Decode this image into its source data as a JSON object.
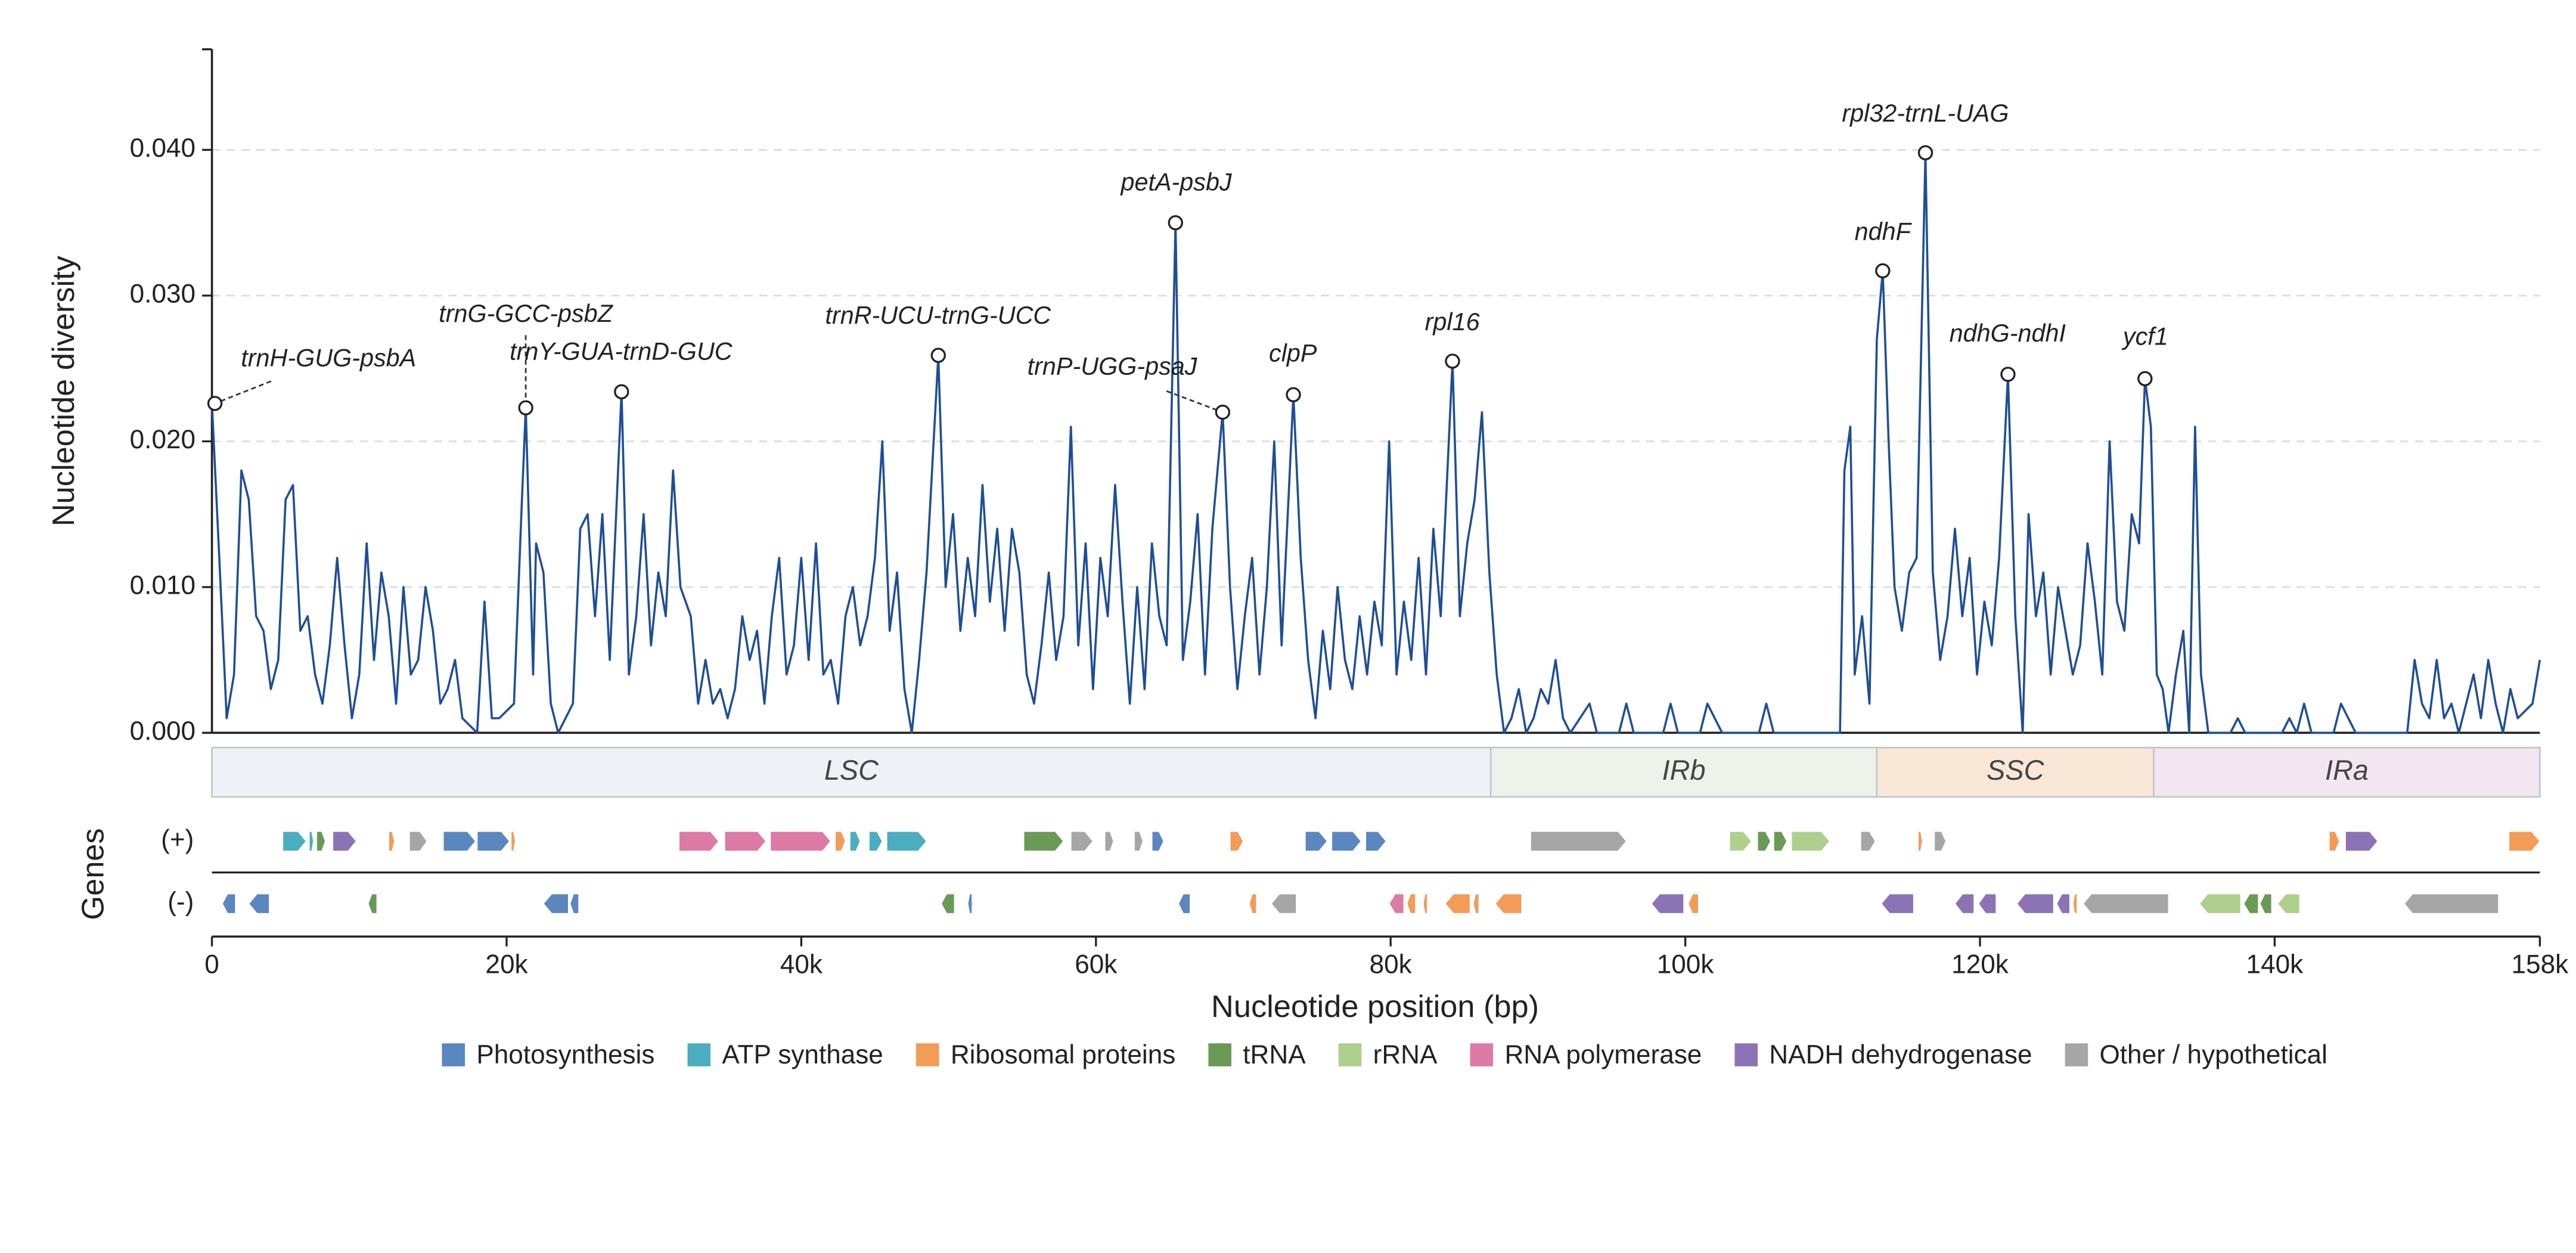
{
  "chart_data": {
    "type": "line",
    "ylabel": "Nucleotide diversity",
    "xlabel": "Nucleotide position (bp)",
    "gene_track_label": "Genes",
    "xlim": [
      0,
      158000
    ],
    "ylim": [
      0,
      0.0469
    ],
    "xticks": [
      0,
      {
        "value": 20000,
        "label": "20k"
      },
      {
        "value": 40000,
        "label": "40k"
      },
      {
        "value": 60000,
        "label": "60k"
      },
      {
        "value": 80000,
        "label": "80k"
      },
      {
        "value": 100000,
        "label": "100k"
      },
      {
        "value": 120000,
        "label": "120k"
      },
      {
        "value": 140000,
        "label": "140k"
      },
      {
        "value": 158000,
        "label": "158k"
      }
    ],
    "yticks": [
      {
        "value": 0,
        "label": "0.000"
      },
      {
        "value": 0.01,
        "label": "0.010"
      },
      {
        "value": 0.02,
        "label": "0.020"
      },
      {
        "value": 0.03,
        "label": "0.030"
      },
      {
        "value": 0.04,
        "label": "0.040"
      }
    ],
    "grid": true,
    "x": [
      0,
      500,
      1000,
      1500,
      2000,
      2500,
      3000,
      3500,
      4000,
      4500,
      5000,
      5500,
      6000,
      6500,
      7000,
      7500,
      8000,
      8500,
      9000,
      9500,
      10000,
      10500,
      11000,
      11500,
      12000,
      12500,
      13000,
      13500,
      14000,
      14500,
      15000,
      15500,
      16000,
      16500,
      17000,
      18000,
      18500,
      19000,
      19500,
      20500,
      21000,
      21300,
      21800,
      22000,
      22500,
      23000,
      23500,
      24000,
      24500,
      25000,
      25500,
      26000,
      26500,
      27000,
      27800,
      28300,
      28800,
      29300,
      29800,
      30300,
      30800,
      31300,
      31800,
      32500,
      33000,
      33500,
      34000,
      34500,
      35000,
      35500,
      36000,
      36500,
      37000,
      37500,
      38000,
      38500,
      39000,
      39500,
      40000,
      40500,
      41000,
      41500,
      42000,
      42500,
      43000,
      43500,
      44000,
      44500,
      45000,
      45500,
      46000,
      46500,
      47000,
      47500,
      48000,
      48500,
      49300,
      49800,
      50300,
      50800,
      51300,
      51800,
      52300,
      52800,
      53300,
      53800,
      54300,
      54800,
      55300,
      55800,
      56300,
      56800,
      57300,
      57800,
      58300,
      58800,
      59300,
      59800,
      60300,
      60800,
      61300,
      61800,
      62300,
      62800,
      63300,
      63800,
      64300,
      64800,
      65400,
      65900,
      66400,
      66900,
      67400,
      67900,
      68600,
      69100,
      69600,
      70100,
      70600,
      71100,
      71600,
      72100,
      72600,
      73400,
      73900,
      74400,
      74900,
      75400,
      75900,
      76400,
      76900,
      77400,
      77900,
      78400,
      78900,
      79400,
      79900,
      80400,
      80900,
      81400,
      81900,
      82400,
      82900,
      83400,
      84200,
      84700,
      85200,
      85700,
      86200,
      86700,
      87200,
      87700,
      88200,
      88700,
      89200,
      89700,
      90200,
      90700,
      91200,
      91700,
      92200,
      93500,
      94000,
      95500,
      96000,
      96500,
      98500,
      99000,
      99500,
      101000,
      101500,
      102000,
      102500,
      105000,
      105500,
      106000,
      110500,
      110800,
      111200,
      111500,
      112000,
      112500,
      113000,
      113400,
      113800,
      114200,
      114700,
      115200,
      115700,
      116300,
      116800,
      117300,
      117800,
      118300,
      118800,
      119300,
      119800,
      120300,
      120800,
      121300,
      121900,
      122400,
      122900,
      123300,
      123800,
      124300,
      124800,
      125300,
      125800,
      126300,
      126800,
      127300,
      127800,
      128300,
      128800,
      129300,
      129800,
      130300,
      130800,
      131200,
      131600,
      132000,
      132400,
      132800,
      133300,
      133800,
      134200,
      134600,
      135000,
      135500,
      137000,
      137500,
      138000,
      140500,
      141000,
      141500,
      142000,
      142500,
      144000,
      144500,
      145000,
      145500,
      149000,
      149500,
      150000,
      150500,
      151000,
      151500,
      152000,
      152500,
      153500,
      154000,
      154500,
      155000,
      155500,
      156000,
      156500,
      157500,
      158000
    ],
    "series": [
      {
        "color": "#1f4e96",
        "values": [
          0.0226,
          0.012,
          0.001,
          0.004,
          0.018,
          0.016,
          0.008,
          0.007,
          0.003,
          0.005,
          0.016,
          0.017,
          0.007,
          0.008,
          0.004,
          0.002,
          0.006,
          0.012,
          0.006,
          0.001,
          0.004,
          0.013,
          0.005,
          0.011,
          0.008,
          0.002,
          0.01,
          0.004,
          0.005,
          0.01,
          0.007,
          0.002,
          0.003,
          0.005,
          0.001,
          0.0,
          0.009,
          0.001,
          0.001,
          0.002,
          0.015,
          0.0223,
          0.004,
          0.013,
          0.011,
          0.002,
          0.0,
          0.001,
          0.002,
          0.014,
          0.015,
          0.008,
          0.015,
          0.005,
          0.0234,
          0.004,
          0.008,
          0.015,
          0.006,
          0.011,
          0.008,
          0.018,
          0.01,
          0.008,
          0.002,
          0.005,
          0.002,
          0.003,
          0.001,
          0.003,
          0.008,
          0.005,
          0.007,
          0.002,
          0.008,
          0.012,
          0.004,
          0.006,
          0.012,
          0.005,
          0.013,
          0.004,
          0.005,
          0.002,
          0.008,
          0.01,
          0.006,
          0.008,
          0.012,
          0.02,
          0.007,
          0.011,
          0.003,
          0.0,
          0.005,
          0.011,
          0.0259,
          0.01,
          0.015,
          0.007,
          0.012,
          0.008,
          0.017,
          0.009,
          0.014,
          0.007,
          0.014,
          0.011,
          0.004,
          0.002,
          0.006,
          0.011,
          0.005,
          0.008,
          0.021,
          0.006,
          0.013,
          0.003,
          0.012,
          0.008,
          0.017,
          0.009,
          0.002,
          0.01,
          0.003,
          0.013,
          0.008,
          0.006,
          0.035,
          0.005,
          0.009,
          0.015,
          0.004,
          0.014,
          0.022,
          0.01,
          0.003,
          0.008,
          0.012,
          0.004,
          0.01,
          0.02,
          0.006,
          0.0232,
          0.012,
          0.005,
          0.001,
          0.007,
          0.003,
          0.01,
          0.005,
          0.003,
          0.008,
          0.004,
          0.009,
          0.006,
          0.02,
          0.004,
          0.009,
          0.005,
          0.012,
          0.004,
          0.014,
          0.008,
          0.0255,
          0.008,
          0.013,
          0.016,
          0.022,
          0.011,
          0.004,
          0.0,
          0.001,
          0.003,
          0.0,
          0.001,
          0.003,
          0.002,
          0.005,
          0.001,
          0.0,
          0.002,
          0.0,
          0.0,
          0.002,
          0.0,
          0.0,
          0.002,
          0.0,
          0.0,
          0.002,
          0.001,
          0.0,
          0.0,
          0.002,
          0.0,
          0.0,
          0.018,
          0.021,
          0.004,
          0.008,
          0.002,
          0.027,
          0.0317,
          0.02,
          0.01,
          0.007,
          0.011,
          0.012,
          0.0398,
          0.011,
          0.005,
          0.008,
          0.014,
          0.008,
          0.012,
          0.004,
          0.009,
          0.006,
          0.012,
          0.0246,
          0.008,
          0.0,
          0.015,
          0.008,
          0.011,
          0.004,
          0.01,
          0.007,
          0.004,
          0.006,
          0.013,
          0.009,
          0.004,
          0.02,
          0.009,
          0.007,
          0.015,
          0.013,
          0.0243,
          0.021,
          0.004,
          0.003,
          0.0,
          0.004,
          0.007,
          0.0,
          0.021,
          0.004,
          0.0,
          0.0,
          0.001,
          0.0,
          0.0,
          0.001,
          0.0,
          0.002,
          0.0,
          0.0,
          0.002,
          0.001,
          0.0,
          0.0,
          0.005,
          0.002,
          0.001,
          0.005,
          0.001,
          0.002,
          0.0,
          0.004,
          0.001,
          0.005,
          0.002,
          0.0,
          0.003,
          0.001,
          0.002,
          0.005
        ]
      }
    ],
    "annotations": [
      {
        "label": "trnH-GUG-psbA",
        "x": 200,
        "y": 0.0226
      },
      {
        "label": "trnG-GCC-psbZ",
        "x": 21300,
        "y": 0.0223
      },
      {
        "label": "trnY-GUA-trnD-GUC",
        "x": 27800,
        "y": 0.0234
      },
      {
        "label": "trnR-UCU-trnG-UCC",
        "x": 49300,
        "y": 0.0259
      },
      {
        "label": "trnP-UGG-psaJ",
        "x": 68600,
        "y": 0.022
      },
      {
        "label": "petA-psbJ",
        "x": 65400,
        "y": 0.035
      },
      {
        "label": "clpP",
        "x": 73400,
        "y": 0.0232
      },
      {
        "label": "rpl16",
        "x": 84200,
        "y": 0.0255
      },
      {
        "label": "ndhF",
        "x": 113400,
        "y": 0.0317
      },
      {
        "label": "rpl32-trnL-UAG",
        "x": 116300,
        "y": 0.0398
      },
      {
        "label": "ndhG-ndhI",
        "x": 121900,
        "y": 0.0246
      },
      {
        "label": "ycf1",
        "x": 131200,
        "y": 0.0243
      }
    ],
    "regions": [
      {
        "name": "LSC",
        "start": 0,
        "end": 86800,
        "color": "#eef2f6"
      },
      {
        "name": "IRb",
        "start": 86800,
        "end": 113000,
        "color": "#edf3ea"
      },
      {
        "name": "SSC",
        "start": 113000,
        "end": 131800,
        "color": "#f9e8d8"
      },
      {
        "name": "IRa",
        "start": 131800,
        "end": 158000,
        "color": "#f2e7f1"
      }
    ],
    "strand_labels": [
      "(+)",
      "(-)"
    ],
    "categories": [
      "Photosynthesis",
      "ATP synthase",
      "Ribosomal proteins",
      "tRNA",
      "rRNA",
      "RNA polymerase",
      "NADH dehydrogenase",
      "Other / hypothetical"
    ],
    "category_colors": [
      "#5b87c1",
      "#4aaec0",
      "#f29c58",
      "#6a9a56",
      "#afcf8c",
      "#dd7aa5",
      "#8c73b5",
      "#a6a6a6"
    ],
    "genes": [
      {
        "start": 4800,
        "end": 6400,
        "strand": 0,
        "category": 1
      },
      {
        "start": 6600,
        "end": 6900,
        "strand": 0,
        "category": 1
      },
      {
        "start": 7100,
        "end": 7700,
        "strand": 0,
        "category": 3
      },
      {
        "start": 8200,
        "end": 9800,
        "strand": 0,
        "category": 6
      },
      {
        "start": 12000,
        "end": 12400,
        "strand": 0,
        "category": 2
      },
      {
        "start": 13400,
        "end": 14600,
        "strand": 0,
        "category": 7
      },
      {
        "start": 15700,
        "end": 17900,
        "strand": 0,
        "category": 0
      },
      {
        "start": 18000,
        "end": 20200,
        "strand": 0,
        "category": 0
      },
      {
        "start": 20300,
        "end": 20600,
        "strand": 0,
        "category": 2
      },
      {
        "start": 31700,
        "end": 34400,
        "strand": 0,
        "category": 5
      },
      {
        "start": 34800,
        "end": 37600,
        "strand": 0,
        "category": 5
      },
      {
        "start": 37900,
        "end": 42000,
        "strand": 0,
        "category": 5
      },
      {
        "start": 42300,
        "end": 43000,
        "strand": 0,
        "category": 2
      },
      {
        "start": 43300,
        "end": 44000,
        "strand": 0,
        "category": 1
      },
      {
        "start": 44600,
        "end": 45500,
        "strand": 0,
        "category": 1
      },
      {
        "start": 45800,
        "end": 48500,
        "strand": 0,
        "category": 1
      },
      {
        "start": 55100,
        "end": 57800,
        "strand": 0,
        "category": 3
      },
      {
        "start": 58300,
        "end": 59800,
        "strand": 0,
        "category": 7
      },
      {
        "start": 60600,
        "end": 61200,
        "strand": 0,
        "category": 7
      },
      {
        "start": 62600,
        "end": 63200,
        "strand": 0,
        "category": 7
      },
      {
        "start": 63800,
        "end": 64600,
        "strand": 0,
        "category": 0
      },
      {
        "start": 69100,
        "end": 70000,
        "strand": 0,
        "category": 2
      },
      {
        "start": 74200,
        "end": 75700,
        "strand": 0,
        "category": 0
      },
      {
        "start": 76000,
        "end": 78000,
        "strand": 0,
        "category": 0
      },
      {
        "start": 78300,
        "end": 79700,
        "strand": 0,
        "category": 0
      },
      {
        "start": 89500,
        "end": 96000,
        "strand": 0,
        "category": 7
      },
      {
        "start": 103000,
        "end": 104500,
        "strand": 0,
        "category": 4
      },
      {
        "start": 104900,
        "end": 105800,
        "strand": 0,
        "category": 3
      },
      {
        "start": 106000,
        "end": 106900,
        "strand": 0,
        "category": 3
      },
      {
        "start": 107200,
        "end": 109800,
        "strand": 0,
        "category": 4
      },
      {
        "start": 111900,
        "end": 112900,
        "strand": 0,
        "category": 7
      },
      {
        "start": 115800,
        "end": 116100,
        "strand": 0,
        "category": 2
      },
      {
        "start": 116900,
        "end": 117700,
        "strand": 0,
        "category": 7
      },
      {
        "start": 143700,
        "end": 144400,
        "strand": 0,
        "category": 2
      },
      {
        "start": 144800,
        "end": 147000,
        "strand": 0,
        "category": 6
      },
      {
        "start": 155900,
        "end": 158000,
        "strand": 0,
        "category": 2
      },
      {
        "start": 700,
        "end": 1600,
        "strand": 1,
        "category": 0
      },
      {
        "start": 2500,
        "end": 3900,
        "strand": 1,
        "category": 0
      },
      {
        "start": 10600,
        "end": 11200,
        "strand": 1,
        "category": 3
      },
      {
        "start": 22500,
        "end": 24200,
        "strand": 1,
        "category": 0
      },
      {
        "start": 24300,
        "end": 24900,
        "strand": 1,
        "category": 0
      },
      {
        "start": 49500,
        "end": 50400,
        "strand": 1,
        "category": 3
      },
      {
        "start": 51300,
        "end": 51600,
        "strand": 1,
        "category": 0
      },
      {
        "start": 65600,
        "end": 66400,
        "strand": 1,
        "category": 0
      },
      {
        "start": 70400,
        "end": 70900,
        "strand": 1,
        "category": 2
      },
      {
        "start": 71900,
        "end": 73600,
        "strand": 1,
        "category": 7
      },
      {
        "start": 79900,
        "end": 80900,
        "strand": 1,
        "category": 5
      },
      {
        "start": 81100,
        "end": 81700,
        "strand": 1,
        "category": 2
      },
      {
        "start": 82200,
        "end": 82500,
        "strand": 1,
        "category": 2
      },
      {
        "start": 83700,
        "end": 85400,
        "strand": 1,
        "category": 2
      },
      {
        "start": 85600,
        "end": 86000,
        "strand": 1,
        "category": 2
      },
      {
        "start": 87100,
        "end": 88900,
        "strand": 1,
        "category": 2
      },
      {
        "start": 97700,
        "end": 99900,
        "strand": 1,
        "category": 6
      },
      {
        "start": 100200,
        "end": 100900,
        "strand": 1,
        "category": 2
      },
      {
        "start": 113300,
        "end": 115500,
        "strand": 1,
        "category": 6
      },
      {
        "start": 118300,
        "end": 119600,
        "strand": 1,
        "category": 6
      },
      {
        "start": 119900,
        "end": 121100,
        "strand": 1,
        "category": 6
      },
      {
        "start": 122500,
        "end": 125000,
        "strand": 1,
        "category": 6
      },
      {
        "start": 125200,
        "end": 126100,
        "strand": 1,
        "category": 6
      },
      {
        "start": 126300,
        "end": 126600,
        "strand": 1,
        "category": 2
      },
      {
        "start": 127000,
        "end": 132800,
        "strand": 1,
        "category": 7
      },
      {
        "start": 134900,
        "end": 137700,
        "strand": 1,
        "category": 4
      },
      {
        "start": 137900,
        "end": 138900,
        "strand": 1,
        "category": 3
      },
      {
        "start": 139000,
        "end": 139800,
        "strand": 1,
        "category": 3
      },
      {
        "start": 140200,
        "end": 141700,
        "strand": 1,
        "category": 4
      },
      {
        "start": 148800,
        "end": 155200,
        "strand": 1,
        "category": 7
      }
    ]
  }
}
